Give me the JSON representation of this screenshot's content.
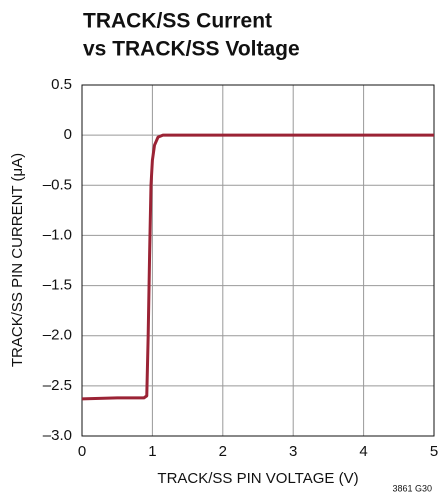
{
  "chart_data": {
    "type": "line",
    "title": [
      "TRACK/SS Current",
      "vs TRACK/SS Voltage"
    ],
    "xlabel": "TRACK/SS PIN VOLTAGE (V)",
    "ylabel": "TRACK/SS PIN CURRENT (μA)",
    "note": "3861 G30",
    "x": [
      0,
      0.5,
      0.88,
      0.92,
      0.94,
      0.96,
      0.98,
      1.0,
      1.03,
      1.08,
      1.15,
      5
    ],
    "series": [
      {
        "name": "TRACK/SS current",
        "color": "#9b2335",
        "values": [
          -2.63,
          -2.62,
          -2.62,
          -2.6,
          -2.0,
          -1.2,
          -0.5,
          -0.25,
          -0.1,
          -0.02,
          0,
          0
        ]
      }
    ],
    "xlim": [
      0,
      5
    ],
    "xticks": [
      0,
      1,
      2,
      3,
      4,
      5
    ],
    "ylim": [
      -3.0,
      0.5
    ],
    "yticks": [
      {
        "value": -3.0,
        "label": "–3.0"
      },
      {
        "value": -2.5,
        "label": "–2.5"
      },
      {
        "value": -2.0,
        "label": "–2.0"
      },
      {
        "value": -1.5,
        "label": "–1.5"
      },
      {
        "value": -1.0,
        "label": "–1.0"
      },
      {
        "value": -0.5,
        "label": "–0.5"
      },
      0,
      0.5
    ],
    "grid": true
  }
}
